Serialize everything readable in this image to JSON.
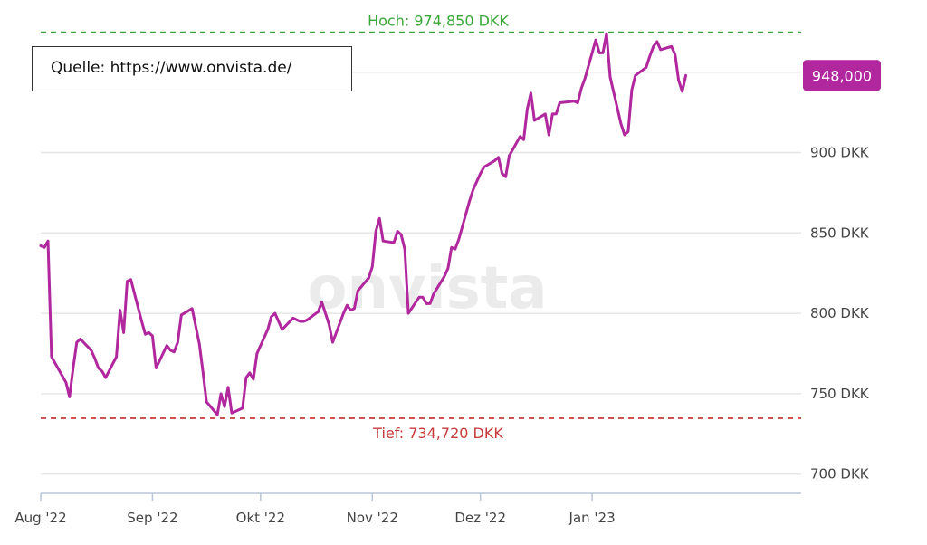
{
  "source": {
    "label": "Quelle: https://www.onvista.de/"
  },
  "watermark": "onvista",
  "colors": {
    "line": "#b0279e",
    "high": "#3aa839",
    "low": "#c73a3a",
    "grid": "#e6e6e6",
    "axis": "#b8c6d8"
  },
  "chart_data": {
    "type": "line",
    "title": "",
    "xlabel": "",
    "ylabel": "",
    "ylim": [
      688,
      978
    ],
    "xlim": [
      "2022-08-01",
      "2023-02-28"
    ],
    "y_ticks": [
      {
        "value": 700,
        "label": "700 DKK"
      },
      {
        "value": 750,
        "label": "750 DKK"
      },
      {
        "value": 800,
        "label": "800 DKK"
      },
      {
        "value": 850,
        "label": "850 DKK"
      },
      {
        "value": 900,
        "label": "900 DKK"
      },
      {
        "value": 950,
        "label": "950 DKK"
      }
    ],
    "x_ticks": [
      {
        "date": "2022-08-01",
        "label": "Aug '22"
      },
      {
        "date": "2022-09-01",
        "label": "Sep '22"
      },
      {
        "date": "2022-10-01",
        "label": "Okt '22"
      },
      {
        "date": "2022-11-01",
        "label": "Nov '22"
      },
      {
        "date": "2022-12-01",
        "label": "Dez '22"
      },
      {
        "date": "2023-01-01",
        "label": "Jan '23"
      }
    ],
    "high": {
      "value": 974.85,
      "label": "Hoch: 974,850 DKK"
    },
    "low": {
      "value": 734.72,
      "label": "Tief: 734,720 DKK"
    },
    "last": {
      "value": 948.0,
      "label": "948,000"
    },
    "grid": true,
    "series": [
      {
        "values": [
          [
            "2022-08-01",
            842
          ],
          [
            "2022-08-02",
            841
          ],
          [
            "2022-08-03",
            845
          ],
          [
            "2022-08-04",
            773
          ],
          [
            "2022-08-05",
            769
          ],
          [
            "2022-08-08",
            757
          ],
          [
            "2022-08-09",
            748
          ],
          [
            "2022-08-10",
            766
          ],
          [
            "2022-08-11",
            782
          ],
          [
            "2022-08-12",
            784
          ],
          [
            "2022-08-15",
            777
          ],
          [
            "2022-08-16",
            772
          ],
          [
            "2022-08-17",
            766
          ],
          [
            "2022-08-18",
            764
          ],
          [
            "2022-08-19",
            760
          ],
          [
            "2022-08-22",
            773
          ],
          [
            "2022-08-23",
            802
          ],
          [
            "2022-08-24",
            788
          ],
          [
            "2022-08-25",
            820
          ],
          [
            "2022-08-26",
            821
          ],
          [
            "2022-08-29",
            795
          ],
          [
            "2022-08-30",
            787
          ],
          [
            "2022-08-31",
            788
          ],
          [
            "2022-09-01",
            786
          ],
          [
            "2022-09-02",
            766
          ],
          [
            "2022-09-05",
            780
          ],
          [
            "2022-09-06",
            777
          ],
          [
            "2022-09-07",
            776
          ],
          [
            "2022-09-08",
            782
          ],
          [
            "2022-09-09",
            799
          ],
          [
            "2022-09-12",
            803
          ],
          [
            "2022-09-13",
            792
          ],
          [
            "2022-09-14",
            781
          ],
          [
            "2022-09-15",
            764
          ],
          [
            "2022-09-16",
            745
          ],
          [
            "2022-09-19",
            737
          ],
          [
            "2022-09-20",
            750
          ],
          [
            "2022-09-21",
            742
          ],
          [
            "2022-09-22",
            754
          ],
          [
            "2022-09-23",
            738
          ],
          [
            "2022-09-26",
            741
          ],
          [
            "2022-09-27",
            760
          ],
          [
            "2022-09-28",
            763
          ],
          [
            "2022-09-29",
            759
          ],
          [
            "2022-09-30",
            775
          ],
          [
            "2022-10-03",
            790
          ],
          [
            "2022-10-04",
            798
          ],
          [
            "2022-10-05",
            800
          ],
          [
            "2022-10-06",
            795
          ],
          [
            "2022-10-07",
            790
          ],
          [
            "2022-10-10",
            797
          ],
          [
            "2022-10-11",
            796
          ],
          [
            "2022-10-12",
            795
          ],
          [
            "2022-10-13",
            795
          ],
          [
            "2022-10-14",
            796
          ],
          [
            "2022-10-17",
            801
          ],
          [
            "2022-10-18",
            807
          ],
          [
            "2022-10-19",
            800
          ],
          [
            "2022-10-20",
            793
          ],
          [
            "2022-10-21",
            782
          ],
          [
            "2022-10-24",
            800
          ],
          [
            "2022-10-25",
            805
          ],
          [
            "2022-10-26",
            802
          ],
          [
            "2022-10-27",
            803
          ],
          [
            "2022-10-28",
            814
          ],
          [
            "2022-10-31",
            822
          ],
          [
            "2022-11-01",
            829
          ],
          [
            "2022-11-02",
            851
          ],
          [
            "2022-11-03",
            859
          ],
          [
            "2022-11-04",
            845
          ],
          [
            "2022-11-07",
            844
          ],
          [
            "2022-11-08",
            851
          ],
          [
            "2022-11-09",
            849
          ],
          [
            "2022-11-10",
            840
          ],
          [
            "2022-11-11",
            800
          ],
          [
            "2022-11-14",
            810
          ],
          [
            "2022-11-15",
            810
          ],
          [
            "2022-11-16",
            806
          ],
          [
            "2022-11-17",
            806
          ],
          [
            "2022-11-18",
            812
          ],
          [
            "2022-11-21",
            823
          ],
          [
            "2022-11-22",
            828
          ],
          [
            "2022-11-23",
            841
          ],
          [
            "2022-11-24",
            840
          ],
          [
            "2022-11-25",
            846
          ],
          [
            "2022-11-28",
            870
          ],
          [
            "2022-11-29",
            877
          ],
          [
            "2022-11-30",
            882
          ],
          [
            "2022-12-01",
            887
          ],
          [
            "2022-12-02",
            891
          ],
          [
            "2022-12-05",
            895
          ],
          [
            "2022-12-06",
            897
          ],
          [
            "2022-12-07",
            887
          ],
          [
            "2022-12-08",
            885
          ],
          [
            "2022-12-09",
            898
          ],
          [
            "2022-12-12",
            910
          ],
          [
            "2022-12-13",
            908
          ],
          [
            "2022-12-14",
            927
          ],
          [
            "2022-12-15",
            937
          ],
          [
            "2022-12-16",
            920
          ],
          [
            "2022-12-19",
            924
          ],
          [
            "2022-12-20",
            911
          ],
          [
            "2022-12-21",
            924
          ],
          [
            "2022-12-22",
            924
          ],
          [
            "2022-12-23",
            931
          ],
          [
            "2022-12-27",
            932
          ],
          [
            "2022-12-28",
            931
          ],
          [
            "2022-12-29",
            940
          ],
          [
            "2022-12-30",
            946
          ],
          [
            "2023-01-02",
            970
          ],
          [
            "2023-01-03",
            962
          ],
          [
            "2023-01-04",
            962
          ],
          [
            "2023-01-05",
            974
          ],
          [
            "2023-01-06",
            947
          ],
          [
            "2023-01-09",
            918
          ],
          [
            "2023-01-10",
            911
          ],
          [
            "2023-01-11",
            913
          ],
          [
            "2023-01-12",
            939
          ],
          [
            "2023-01-13",
            948
          ],
          [
            "2023-01-16",
            953
          ],
          [
            "2023-01-17",
            960
          ],
          [
            "2023-01-18",
            966
          ],
          [
            "2023-01-19",
            969
          ],
          [
            "2023-01-20",
            964
          ],
          [
            "2023-01-23",
            966
          ],
          [
            "2023-01-24",
            961
          ],
          [
            "2023-01-25",
            945
          ],
          [
            "2023-01-26",
            938
          ],
          [
            "2023-01-27",
            948
          ]
        ]
      }
    ]
  }
}
